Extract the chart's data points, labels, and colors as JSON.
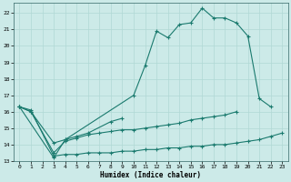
{
  "xlabel": "Humidex (Indice chaleur)",
  "xlim": [
    -0.5,
    23.5
  ],
  "ylim": [
    13,
    22.6
  ],
  "yticks": [
    13,
    14,
    15,
    16,
    17,
    18,
    19,
    20,
    21,
    22
  ],
  "xticks": [
    0,
    1,
    2,
    3,
    4,
    5,
    6,
    7,
    8,
    9,
    10,
    11,
    12,
    13,
    14,
    15,
    16,
    17,
    18,
    19,
    20,
    21,
    22,
    23
  ],
  "bg_color": "#cceae8",
  "grid_color": "#b0d8d5",
  "line_color": "#1a7a6e",
  "line1_x": [
    0,
    1,
    3,
    4,
    10,
    11,
    12,
    13,
    14,
    15,
    16,
    17,
    18,
    19,
    20,
    21,
    22
  ],
  "line1_y": [
    16.3,
    16.0,
    14.1,
    14.3,
    17.0,
    18.8,
    20.9,
    20.5,
    21.3,
    21.4,
    22.3,
    21.7,
    21.7,
    21.4,
    20.6,
    16.8,
    16.3
  ],
  "line2_x": [
    0,
    3,
    4,
    5,
    6,
    8,
    9
  ],
  "line2_y": [
    16.3,
    13.2,
    14.3,
    14.5,
    14.7,
    15.4,
    15.6
  ],
  "line3_x": [
    0,
    1,
    3,
    4,
    5,
    6,
    7,
    8,
    9,
    10,
    11,
    12,
    13,
    14,
    15,
    16,
    17,
    18,
    19
  ],
  "line3_y": [
    16.3,
    16.0,
    13.5,
    14.2,
    14.4,
    14.6,
    14.7,
    14.8,
    14.9,
    14.9,
    15.0,
    15.1,
    15.2,
    15.3,
    15.5,
    15.6,
    15.7,
    15.8,
    16.0
  ],
  "line4_x": [
    0,
    1,
    3,
    4,
    5,
    6,
    7,
    8,
    9,
    10,
    11,
    12,
    13,
    14,
    15,
    16,
    17,
    18,
    19,
    20,
    21,
    22,
    23
  ],
  "line4_y": [
    16.3,
    16.1,
    13.3,
    13.4,
    13.4,
    13.5,
    13.5,
    13.5,
    13.6,
    13.6,
    13.7,
    13.7,
    13.8,
    13.8,
    13.9,
    13.9,
    14.0,
    14.0,
    14.1,
    14.2,
    14.3,
    14.5,
    14.7
  ]
}
